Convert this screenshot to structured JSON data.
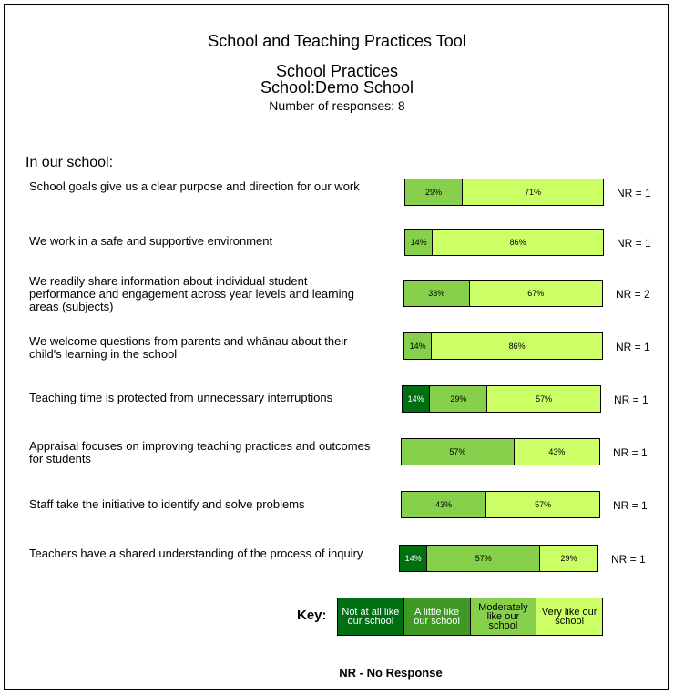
{
  "header": {
    "tool_title": "School and Teaching Practices Tool",
    "section_title": "School Practices",
    "school_line": "School:Demo School",
    "responses_line": "Number of responses: 8"
  },
  "intro": "In our school:",
  "colors": {
    "not_at_all": "#006f12",
    "a_little": "#3e9a24",
    "moderately": "#86d04b",
    "very": "#ccff66"
  },
  "chart_data": {
    "type": "bar",
    "orientation": "horizontal-stacked-percent",
    "categories": [
      "School goals give us a clear purpose and direction for our work",
      "We work in a safe and supportive environment",
      "We readily share information about individual student performance and engagement across year levels and learning areas (subjects)",
      "We welcome questions from parents and whānau about their child's learning in the school",
      "Teaching time is protected from unnecessary interruptions",
      "Appraisal focuses on improving teaching practices and outcomes for students",
      "Staff take the initiative to identify and solve problems",
      "Teachers have a shared understanding of the process of inquiry"
    ],
    "series": [
      {
        "name": "Not at all like our school",
        "values": [
          0,
          0,
          0,
          0,
          14,
          0,
          0,
          14
        ]
      },
      {
        "name": "A little like our school",
        "values": [
          0,
          0,
          0,
          0,
          0,
          0,
          0,
          0
        ]
      },
      {
        "name": "Moderately like our school",
        "values": [
          29,
          14,
          33,
          14,
          29,
          57,
          43,
          57
        ]
      },
      {
        "name": "Very like our school",
        "values": [
          71,
          86,
          67,
          86,
          57,
          43,
          57,
          29
        ]
      }
    ],
    "nr": [
      "NR = 1",
      "NR = 1",
      "NR = 2",
      "NR = 1",
      "NR = 1",
      "NR = 1",
      "NR = 1",
      "NR = 1"
    ],
    "legend_title": "Key:",
    "legend_placement": "bottom"
  },
  "footer": "NR - No Response"
}
